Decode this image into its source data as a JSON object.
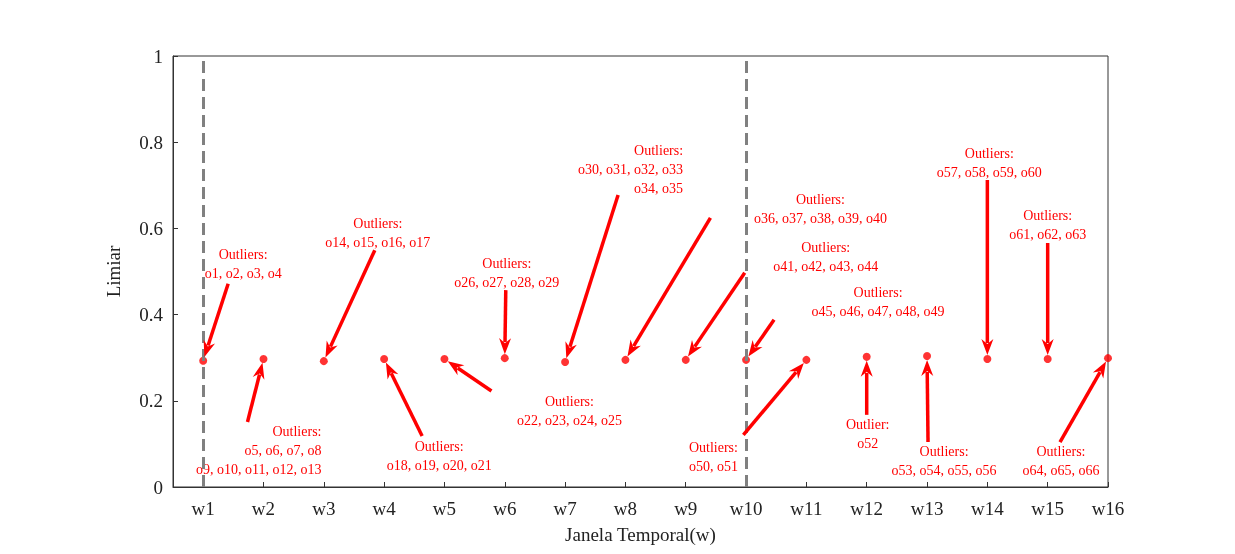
{
  "chart_data": {
    "type": "scatter",
    "xlabel": "Janela Temporal(w)",
    "ylabel": "Limiar",
    "categories": [
      "w1",
      "w2",
      "w3",
      "w4",
      "w5",
      "w6",
      "w7",
      "w8",
      "w9",
      "w10",
      "w11",
      "w12",
      "w13",
      "w14",
      "w15",
      "w16"
    ],
    "series": [
      {
        "color": "#ff0000",
        "values": [
          0.293,
          0.297,
          0.292,
          0.297,
          0.297,
          0.299,
          0.29,
          0.295,
          0.295,
          0.295,
          0.295,
          0.302,
          0.304,
          0.297,
          0.297,
          0.299
        ]
      }
    ],
    "ylim": [
      0,
      1
    ],
    "yticks": [
      0,
      0.2,
      0.4,
      0.6,
      0.8,
      1
    ],
    "grid": false,
    "marker": "circle",
    "ref_lines": [
      {
        "axis": "x",
        "value": "w1",
        "color": "#808080",
        "line_style": "dashed"
      },
      {
        "axis": "x",
        "value": "w10",
        "color": "#808080",
        "line_style": "dashed"
      }
    ],
    "annotations": [
      "Outliers:\no1, o2, o3, o4",
      "Outliers:\no5, o6, o7, o8\no9, o10, o11, o12, o13",
      "Outliers:\no14, o15, o16, o17",
      "Outliers:\no18, o19, o20, o21",
      "Outliers:\no22, o23, o24, o25",
      "Outliers:\no26, o27, o28, o29",
      "Outliers:\no30, o31, o32, o33\no34, o35",
      "Outliers:\no36, o37, o38, o39, o40",
      "Outliers:\no41, o42, o43, o44",
      "Outliers:\no45, o46, o47, o48, o49",
      "Outliers:\no50, o51",
      "Outlier:\no52",
      "Outliers:\no53, o54, o55, o56",
      "Outliers:\no57, o58, o59, o60",
      "Outliers:\no61, o62, o63",
      "Outliers:\no64, o65, o66"
    ]
  }
}
